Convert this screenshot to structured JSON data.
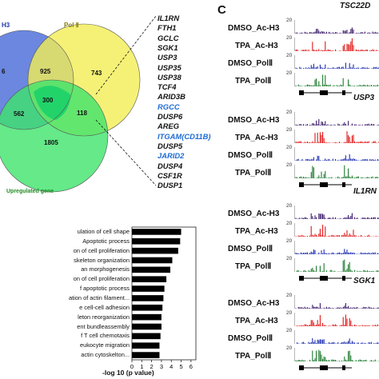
{
  "venn": {
    "set_a_label": "H3",
    "set_b_label": "Pol Ⅱ",
    "set_c_label": "Upregulated gene",
    "regions": {
      "a_only": "6",
      "ab_only": "925",
      "b_only": "743",
      "abc": "300",
      "ac_only": "562",
      "bc_only": "118",
      "c_only": "1805"
    },
    "colors": {
      "a": "#3a5fd6",
      "b": "#f2ee55",
      "c": "#3ee36b",
      "center": "#22d36a",
      "label_b": "#8a7d12",
      "label_c": "#1e8a22"
    }
  },
  "gene_list": [
    {
      "name": "IL1RN",
      "color": "#111111"
    },
    {
      "name": "FTH1",
      "color": "#111111"
    },
    {
      "name": "GCLC",
      "color": "#111111"
    },
    {
      "name": "SGK1",
      "color": "#111111"
    },
    {
      "name": "USP3",
      "color": "#111111"
    },
    {
      "name": "USP35",
      "color": "#111111"
    },
    {
      "name": "USP38",
      "color": "#111111"
    },
    {
      "name": "TCF4",
      "color": "#111111"
    },
    {
      "name": "ARID3B",
      "color": "#111111"
    },
    {
      "name": "RGCC",
      "color": "#1e6bd6"
    },
    {
      "name": "DUSP6",
      "color": "#111111"
    },
    {
      "name": "AREG",
      "color": "#111111"
    },
    {
      "name": "ITGAM(CD11B)",
      "color": "#1e6bd6"
    },
    {
      "name": "DUSP5",
      "color": "#111111"
    },
    {
      "name": "JARID2",
      "color": "#1e6bd6"
    },
    {
      "name": "DUSP4",
      "color": "#111111"
    },
    {
      "name": "CSF1R",
      "color": "#111111"
    },
    {
      "name": "DUSP1",
      "color": "#111111"
    }
  ],
  "panel_c": {
    "letter": "C",
    "groups": [
      {
        "gene": "TSC22D",
        "tracks": [
          {
            "label": "DMSO_Ac-H3",
            "scale": "20",
            "color": "#3b1a6b"
          },
          {
            "label": "TPA_Ac-H3",
            "scale": "20",
            "color": "#e01818"
          },
          {
            "label": "DMSO_PolⅡ",
            "scale": "20",
            "color": "#1f2fb0"
          },
          {
            "label": "TPA_PolⅡ",
            "scale": "20",
            "color": "#1c7a2e"
          }
        ]
      },
      {
        "gene": "USP3",
        "tracks": [
          {
            "label": "DMSO_Ac-H3",
            "scale": "20",
            "color": "#3b1a6b"
          },
          {
            "label": "TPA_Ac-H3",
            "scale": "20",
            "color": "#e01818"
          },
          {
            "label": "DMSO_PolⅡ",
            "scale": "20",
            "color": "#1f2fb0"
          },
          {
            "label": "TPA_PolⅡ",
            "scale": "20",
            "color": "#1c7a2e"
          }
        ]
      },
      {
        "gene": "IL1RN",
        "tracks": [
          {
            "label": "DMSO_Ac-H3",
            "scale": "20",
            "color": "#3b1a6b"
          },
          {
            "label": "TPA_Ac-H3",
            "scale": "20",
            "color": "#e01818"
          },
          {
            "label": "DMSO_PolⅡ",
            "scale": "20",
            "color": "#1f2fb0"
          },
          {
            "label": "TPA_PolⅡ",
            "scale": "20",
            "color": "#1c7a2e"
          }
        ]
      },
      {
        "gene": "SGK1",
        "tracks": [
          {
            "label": "DMSO_Ac-H3",
            "scale": "20",
            "color": "#3b1a6b"
          },
          {
            "label": "TPA_Ac-H3",
            "scale": "20",
            "color": "#e01818"
          },
          {
            "label": "DMSO_PolⅡ",
            "scale": "20",
            "color": "#1f2fb0"
          },
          {
            "label": "TPA_PolⅡ",
            "scale": "20",
            "color": "#1c7a2e"
          }
        ]
      }
    ]
  },
  "chart_data": {
    "type": "bar",
    "orientation": "horizontal",
    "categories": [
      "ulation of cell shape",
      "Apoptotic process",
      "on of cell proliferation",
      "skeleton organization",
      "an morphogenesis",
      "on of cell proliferation",
      "f apoptotic process",
      "ation of actin filament...",
      "e cell-cell adhesion",
      "leton reorganization",
      "ent bundleassembly",
      "f T cell chemotaxis",
      "eukocyte migration",
      "actin cytoskelton..."
    ],
    "values": [
      5.0,
      4.9,
      4.7,
      4.1,
      3.9,
      3.5,
      3.3,
      3.2,
      3.1,
      3.0,
      3.0,
      2.9,
      2.8,
      2.8
    ],
    "xlim": [
      0,
      6.5
    ],
    "xticks": [
      "0",
      "1",
      "2",
      "3",
      "4",
      "5",
      "6"
    ],
    "xlabel": "-log 10 (p value)",
    "bar_color": "#000000"
  }
}
